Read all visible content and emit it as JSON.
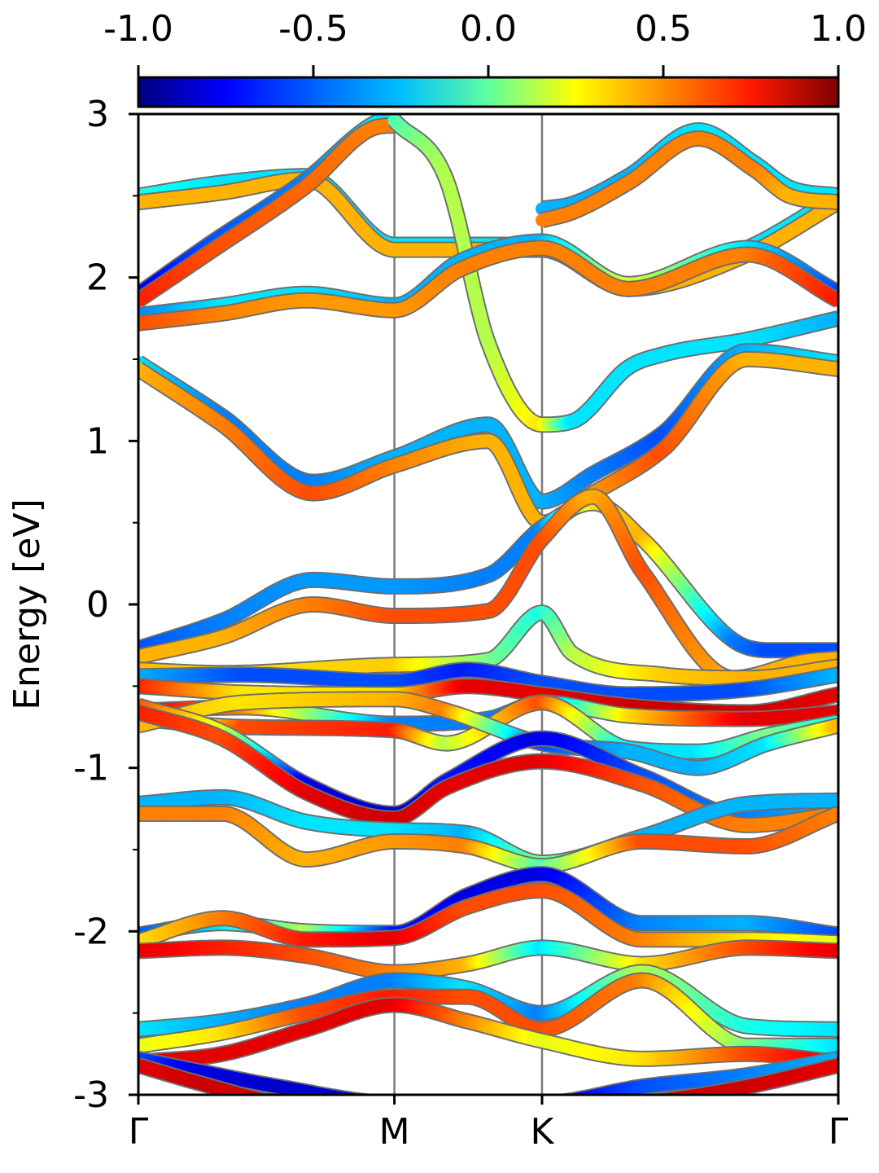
{
  "chart_data": {
    "type": "line",
    "ylabel": "Energy [eV]",
    "ylim": [
      -3,
      3
    ],
    "y_ticks": [
      "-3",
      "-2",
      "-1",
      "0",
      "1",
      "2",
      "3"
    ],
    "y_minor_ticks": [
      -2.5,
      -1.5,
      -0.5,
      0.5,
      1.5,
      2.5
    ],
    "x_ticks": [
      {
        "label": "Γ",
        "pos": 0.0
      },
      {
        "label": "M",
        "pos": 0.3658
      },
      {
        "label": "K",
        "pos": 0.5767
      },
      {
        "label": "Γ",
        "pos": 1.0
      }
    ],
    "vlines": [
      0.3658,
      0.5767
    ],
    "colorbar": {
      "range": [
        -1.0,
        1.0
      ],
      "ticks": [
        "-1.0",
        "-0.5",
        "0.0",
        "0.5",
        "1.0"
      ],
      "colormap": "jet"
    },
    "series": [
      {
        "x": [
          0,
          0.12,
          0.24,
          0.3658,
          0.46,
          0.5767,
          0.7,
          0.87,
          1.0
        ],
        "y": [
          2.5,
          2.58,
          2.62,
          2.2,
          2.2,
          2.2,
          1.95,
          2.18,
          2.5
        ],
        "c": [
          -0.2,
          -0.3,
          -0.3,
          -0.3,
          -0.3,
          -0.3,
          0.3,
          -0.3,
          -0.3
        ]
      },
      {
        "x": [
          0,
          0.12,
          0.24,
          0.3658,
          0.46,
          0.5767,
          0.7,
          0.87,
          1.0
        ],
        "y": [
          2.46,
          2.52,
          2.6,
          2.17,
          2.17,
          2.17,
          1.93,
          2.14,
          2.46
        ],
        "c": [
          0.4,
          0.4,
          0.4,
          0.4,
          0.4,
          0.4,
          0.4,
          0.4,
          0.4
        ]
      },
      {
        "x": [
          0,
          0.1,
          0.24,
          0.34,
          0.3658
        ],
        "y": [
          1.9,
          2.2,
          2.6,
          2.95,
          2.97
        ],
        "c": [
          -0.8,
          -0.6,
          -0.5,
          -0.3,
          -0.3
        ]
      },
      {
        "x": [
          0,
          0.1,
          0.24,
          0.34,
          0.3658
        ],
        "y": [
          1.86,
          2.15,
          2.56,
          2.92,
          2.93
        ],
        "c": [
          0.7,
          0.6,
          0.55,
          0.5,
          0.5
        ]
      },
      {
        "x": [
          0.3658,
          0.44,
          0.5,
          0.5767,
          0.62,
          0.7,
          0.75,
          0.87,
          1.0
        ],
        "y": [
          2.96,
          2.6,
          1.6,
          1.1,
          1.12,
          1.45,
          1.53,
          1.62,
          1.75
        ],
        "c": [
          -0.1,
          0.1,
          0.1,
          0.3,
          -0.3,
          -0.3,
          -0.3,
          -0.3,
          -0.4
        ]
      },
      {
        "x": [
          0.5767,
          0.62,
          0.7,
          0.8,
          0.88,
          0.93,
          1.0
        ],
        "y": [
          2.42,
          2.45,
          2.62,
          2.9,
          2.7,
          2.55,
          2.5
        ],
        "c": [
          -0.4,
          -0.4,
          -0.4,
          -0.3,
          -0.3,
          -0.3,
          -0.3
        ]
      },
      {
        "x": [
          0.5767,
          0.62,
          0.7,
          0.8,
          0.88,
          0.93,
          1.0
        ],
        "y": [
          2.35,
          2.4,
          2.58,
          2.85,
          2.66,
          2.5,
          2.46
        ],
        "c": [
          0.5,
          0.5,
          0.5,
          0.5,
          0.5,
          0.4,
          0.4
        ]
      },
      {
        "x": [
          0,
          0.12,
          0.24,
          0.3658,
          0.46,
          0.5767,
          0.7,
          0.87,
          1.0
        ],
        "y": [
          1.77,
          1.83,
          1.9,
          1.83,
          2.1,
          2.22,
          1.96,
          2.18,
          1.91
        ],
        "c": [
          -0.5,
          -0.3,
          -0.3,
          -0.4,
          -0.4,
          -0.4,
          0.2,
          -0.3,
          -0.6
        ]
      },
      {
        "x": [
          0,
          0.12,
          0.24,
          0.3658,
          0.46,
          0.5767,
          0.7,
          0.87,
          1.0
        ],
        "y": [
          1.72,
          1.78,
          1.86,
          1.8,
          2.05,
          2.18,
          1.93,
          2.14,
          1.86
        ],
        "c": [
          0.6,
          0.5,
          0.45,
          0.45,
          0.5,
          0.5,
          0.5,
          0.5,
          0.7
        ]
      },
      {
        "x": [
          0,
          0.12,
          0.25,
          0.3658,
          0.5,
          0.5767,
          0.65,
          0.75,
          0.87,
          1.0
        ],
        "y": [
          1.48,
          1.15,
          0.75,
          0.9,
          1.1,
          0.63,
          0.8,
          1.05,
          1.55,
          1.48
        ],
        "c": [
          -0.3,
          -0.5,
          -0.5,
          -0.4,
          -0.4,
          -0.4,
          -0.5,
          -0.6,
          -0.4,
          -0.3
        ]
      },
      {
        "x": [
          0,
          0.12,
          0.25,
          0.3658,
          0.5,
          0.5767,
          0.65,
          0.75,
          0.87,
          1.0
        ],
        "y": [
          1.44,
          1.1,
          0.68,
          0.85,
          1.0,
          0.5,
          0.68,
          0.95,
          1.5,
          1.44
        ],
        "c": [
          0.4,
          0.5,
          0.6,
          0.5,
          0.4,
          0.4,
          0.45,
          0.6,
          0.4,
          0.4
        ]
      },
      {
        "x": [
          0,
          0.12,
          0.25,
          0.3658,
          0.5,
          0.5767,
          0.65,
          0.72,
          0.85,
          0.9,
          1.0
        ],
        "y": [
          -0.27,
          -0.1,
          0.15,
          0.11,
          0.18,
          0.47,
          0.62,
          0.4,
          -0.22,
          -0.28,
          -0.28
        ],
        "c": [
          -0.6,
          -0.5,
          -0.45,
          -0.45,
          -0.5,
          -0.5,
          0.3,
          0.4,
          -0.5,
          -0.6,
          -0.6
        ]
      },
      {
        "x": [
          0,
          0.12,
          0.25,
          0.3658,
          0.5,
          0.5767,
          0.65,
          0.72,
          0.85,
          0.95,
          1.0
        ],
        "y": [
          -0.32,
          -0.2,
          0.0,
          -0.07,
          -0.04,
          0.4,
          0.66,
          0.2,
          -0.45,
          -0.35,
          -0.33
        ],
        "c": [
          0.4,
          0.4,
          0.5,
          0.6,
          0.6,
          0.6,
          0.4,
          0.6,
          0.4,
          0.4,
          0.4
        ]
      },
      {
        "x": [
          0,
          0.12,
          0.3658,
          0.5,
          0.5767,
          0.62,
          0.75,
          0.87,
          1.0
        ],
        "y": [
          -0.4,
          -0.42,
          -0.37,
          -0.34,
          -0.05,
          -0.3,
          -0.43,
          -0.45,
          -0.38
        ],
        "c": [
          0.4,
          0.3,
          0.35,
          0.0,
          -0.2,
          0.1,
          0.35,
          0.4,
          0.4
        ]
      },
      {
        "x": [
          0,
          0.15,
          0.3658,
          0.47,
          0.5767,
          0.7,
          0.87,
          1.0
        ],
        "y": [
          -0.44,
          -0.43,
          -0.47,
          -0.4,
          -0.48,
          -0.55,
          -0.52,
          -0.43
        ],
        "c": [
          -0.4,
          -0.6,
          -0.6,
          -0.7,
          -0.6,
          -0.6,
          -0.6,
          -0.4
        ]
      },
      {
        "x": [
          0,
          0.15,
          0.3658,
          0.47,
          0.5767,
          0.7,
          0.87,
          1.0
        ],
        "y": [
          -0.5,
          -0.54,
          -0.55,
          -0.5,
          -0.55,
          -0.62,
          -0.66,
          -0.55
        ],
        "c": [
          0.7,
          0.3,
          0.3,
          0.8,
          0.8,
          0.85,
          0.85,
          0.8
        ]
      },
      {
        "x": [
          0,
          0.15,
          0.3658,
          0.5,
          0.5767,
          0.7,
          0.87,
          1.0
        ],
        "y": [
          -0.65,
          -0.63,
          -0.73,
          -0.7,
          -0.6,
          -0.68,
          -0.7,
          -0.66
        ],
        "c": [
          0.8,
          0.5,
          -0.5,
          -0.5,
          -0.5,
          0.3,
          0.8,
          0.8
        ]
      },
      {
        "x": [
          0,
          0.15,
          0.3658,
          0.44,
          0.5767,
          0.7,
          0.8,
          0.9,
          1.0
        ],
        "y": [
          -0.7,
          -0.75,
          -0.77,
          -0.85,
          -0.6,
          -0.88,
          -0.9,
          -0.8,
          -0.72
        ],
        "c": [
          -0.3,
          0.6,
          0.7,
          0.1,
          0.6,
          -0.3,
          -0.3,
          0.0,
          -0.2
        ]
      },
      {
        "x": [
          0,
          0.15,
          0.3658,
          0.44,
          0.5767,
          0.7,
          0.8,
          0.9,
          1.0
        ],
        "y": [
          -0.74,
          -0.6,
          -0.58,
          -0.65,
          -0.85,
          -0.9,
          -1.0,
          -0.85,
          -0.74
        ],
        "c": [
          0.4,
          0.3,
          0.4,
          0.5,
          -0.6,
          -0.4,
          -0.4,
          -0.3,
          0.4
        ]
      },
      {
        "x": [
          0,
          0.12,
          0.24,
          0.3658,
          0.44,
          0.5767,
          0.72,
          0.87,
          1.0
        ],
        "y": [
          -0.62,
          -0.78,
          -1.1,
          -1.28,
          -1.08,
          -0.82,
          -1.05,
          -1.3,
          -1.22
        ],
        "c": [
          0.6,
          0.2,
          -0.8,
          -0.85,
          -0.7,
          -0.8,
          -0.6,
          -0.5,
          -0.4
        ]
      },
      {
        "x": [
          0,
          0.12,
          0.24,
          0.3658,
          0.44,
          0.5767,
          0.72,
          0.87,
          1.0
        ],
        "y": [
          -0.66,
          -0.82,
          -1.15,
          -1.31,
          -1.12,
          -0.96,
          -1.1,
          -1.35,
          -1.28
        ],
        "c": [
          0.7,
          0.6,
          0.8,
          0.85,
          0.8,
          0.8,
          0.6,
          0.5,
          0.5
        ]
      },
      {
        "x": [
          0,
          0.12,
          0.24,
          0.3658,
          0.47,
          0.5767,
          0.72,
          0.87,
          1.0
        ],
        "y": [
          -1.22,
          -1.18,
          -1.33,
          -1.38,
          -1.4,
          -1.58,
          -1.42,
          -1.22,
          -1.2
        ],
        "c": [
          -0.4,
          -0.4,
          -0.3,
          -0.3,
          -0.4,
          0.0,
          -0.4,
          -0.4,
          -0.4
        ]
      },
      {
        "x": [
          0,
          0.12,
          0.24,
          0.3658,
          0.47,
          0.5767,
          0.72,
          0.87,
          1.0
        ],
        "y": [
          -1.28,
          -1.28,
          -1.56,
          -1.45,
          -1.48,
          -1.6,
          -1.45,
          -1.48,
          -1.28
        ],
        "c": [
          0.5,
          0.5,
          0.4,
          0.45,
          0.5,
          -0.1,
          0.6,
          0.6,
          0.5
        ]
      },
      {
        "x": [
          0,
          0.12,
          0.24,
          0.3658,
          0.47,
          0.5767,
          0.72,
          0.87,
          1.0
        ],
        "y": [
          -2.02,
          -1.95,
          -2.0,
          -2.01,
          -1.78,
          -1.65,
          -1.95,
          -1.95,
          -2.02
        ],
        "c": [
          -0.6,
          -0.3,
          0.1,
          -0.7,
          -0.8,
          -0.8,
          -0.5,
          -0.4,
          -0.6
        ]
      },
      {
        "x": [
          0,
          0.12,
          0.24,
          0.3658,
          0.47,
          0.5767,
          0.72,
          0.87,
          1.0
        ],
        "y": [
          -2.06,
          -1.92,
          -2.05,
          -2.04,
          -1.85,
          -1.75,
          -2.05,
          -2.05,
          -2.07
        ],
        "c": [
          0.3,
          0.5,
          0.7,
          0.8,
          0.6,
          0.6,
          0.5,
          0.3,
          0.2
        ]
      },
      {
        "x": [
          0,
          0.12,
          0.24,
          0.3658,
          0.47,
          0.5767,
          0.72,
          0.87,
          1.0
        ],
        "y": [
          -2.12,
          -2.1,
          -2.15,
          -2.25,
          -2.2,
          -2.1,
          -2.2,
          -2.1,
          -2.12
        ],
        "c": [
          0.8,
          0.7,
          0.6,
          0.5,
          0.4,
          -0.3,
          0.3,
          0.6,
          0.8
        ]
      },
      {
        "x": [
          0,
          0.12,
          0.24,
          0.3658,
          0.47,
          0.5767,
          0.72,
          0.87,
          1.0
        ],
        "y": [
          -2.6,
          -2.55,
          -2.45,
          -2.3,
          -2.35,
          -2.5,
          -2.25,
          -2.58,
          -2.6
        ],
        "c": [
          -0.3,
          -0.4,
          -0.5,
          -0.5,
          -0.3,
          -0.5,
          0.1,
          -0.2,
          -0.3
        ]
      },
      {
        "x": [
          0,
          0.12,
          0.24,
          0.3658,
          0.47,
          0.5767,
          0.72,
          0.87,
          1.0
        ],
        "y": [
          -2.7,
          -2.62,
          -2.5,
          -2.4,
          -2.4,
          -2.6,
          -2.3,
          -2.7,
          -2.7
        ],
        "c": [
          0.2,
          0.3,
          0.6,
          0.7,
          0.6,
          0.6,
          0.5,
          0.0,
          -0.3
        ]
      },
      {
        "x": [
          0,
          0.12,
          0.24,
          0.3658,
          0.47,
          0.5767,
          0.72,
          0.87,
          1.0
        ],
        "y": [
          -2.8,
          -2.75,
          -2.6,
          -2.45,
          -2.55,
          -2.67,
          -2.78,
          -2.75,
          -2.8
        ],
        "c": [
          0.8,
          0.8,
          0.8,
          0.8,
          0.5,
          0.2,
          0.3,
          0.6,
          0.8
        ]
      },
      {
        "x": [
          0,
          0.08,
          0.2,
          0.3658,
          0.5767,
          0.72,
          0.87,
          1.0
        ],
        "y": [
          -2.78,
          -2.85,
          -2.95,
          -3.05,
          -3.05,
          -2.95,
          -2.88,
          -2.78
        ],
        "c": [
          -0.6,
          -0.8,
          -0.85,
          -0.85,
          -0.85,
          -0.6,
          -0.5,
          -0.4
        ]
      },
      {
        "x": [
          0,
          0.08,
          0.2,
          0.3658,
          0.5767,
          0.72,
          0.87,
          1.0
        ],
        "y": [
          -2.82,
          -2.92,
          -3.05,
          -3.1,
          -3.1,
          -3.05,
          -2.95,
          -2.82
        ],
        "c": [
          0.8,
          0.85,
          0.85,
          0.85,
          0.85,
          0.85,
          0.85,
          0.8
        ]
      }
    ]
  }
}
